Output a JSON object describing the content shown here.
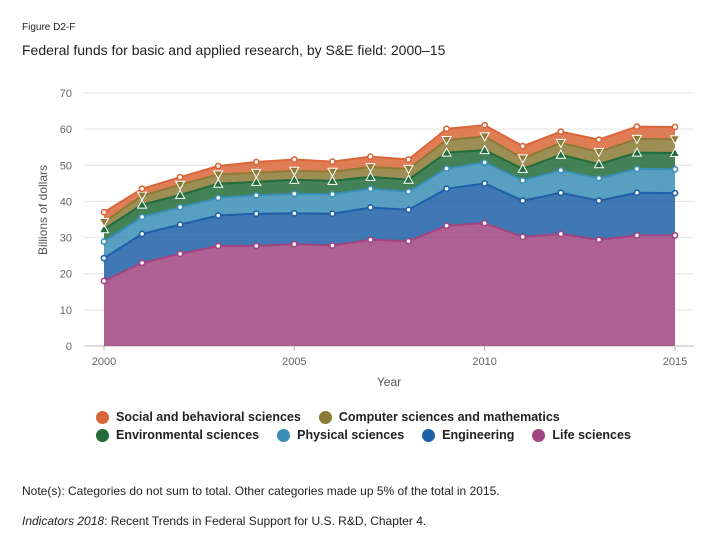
{
  "figure_label": "Figure D2-F",
  "title": "Federal funds for basic and applied research, by S&E field: 2000–15",
  "note": "Note(s): Categories do not sum to total. Other categories made up 5% of the total in 2015.",
  "source_italic": "Indicators 2018",
  "source_sep": ":",
  "source_rest": " Recent Trends in Federal Support for U.S. R&D, Chapter 4.",
  "chart_data": {
    "type": "area",
    "stacked": true,
    "title": "Federal funds for basic and applied research, by S&E field: 2000–15",
    "xlabel": "Year",
    "ylabel": "Billions of dollars",
    "ylim": [
      0,
      70
    ],
    "yticks": [
      "0",
      "10",
      "20",
      "30",
      "40",
      "50",
      "60",
      "70"
    ],
    "xtick_labels": [
      "2000",
      "2005",
      "2010",
      "2015"
    ],
    "xtick_values": [
      2000,
      2005,
      2010,
      2015
    ],
    "x": [
      2000,
      2001,
      2002,
      2003,
      2004,
      2005,
      2006,
      2007,
      2008,
      2009,
      2010,
      2011,
      2012,
      2013,
      2014,
      2015
    ],
    "series": [
      {
        "name": "Life sciences",
        "color": "#a0457f",
        "marker": "circle",
        "values": [
          18.0,
          23.0,
          25.5,
          27.7,
          27.7,
          28.2,
          27.8,
          29.4,
          29.0,
          33.3,
          34.0,
          30.2,
          31.0,
          29.4,
          30.6,
          30.6
        ]
      },
      {
        "name": "Engineering",
        "color": "#1f5fa8",
        "marker": "circle",
        "values": [
          6.3,
          8.0,
          8.1,
          8.4,
          8.9,
          8.5,
          8.8,
          8.9,
          8.7,
          10.2,
          11.0,
          10.0,
          11.4,
          10.8,
          11.8,
          11.7
        ]
      },
      {
        "name": "Physical sciences",
        "color": "#3a8fb7",
        "marker": "circle",
        "values": [
          4.6,
          4.7,
          4.8,
          4.9,
          5.1,
          5.4,
          5.4,
          5.2,
          5.0,
          5.6,
          5.8,
          5.6,
          6.2,
          6.2,
          6.6,
          6.6
        ]
      },
      {
        "name": "Environmental sciences",
        "color": "#226b3a",
        "marker": "triangle",
        "values": [
          3.4,
          3.4,
          3.4,
          3.9,
          3.7,
          3.9,
          3.7,
          3.3,
          3.3,
          4.4,
          3.4,
          3.2,
          4.3,
          3.9,
          4.5,
          4.5
        ]
      },
      {
        "name": "Computer sciences and mathematics",
        "color": "#8c7a35",
        "marker": "triangle-down",
        "values": [
          2.0,
          2.5,
          2.8,
          2.6,
          2.5,
          2.5,
          2.5,
          2.7,
          3.0,
          3.5,
          3.8,
          2.9,
          3.3,
          3.4,
          3.8,
          3.8
        ]
      },
      {
        "name": "Social and behavioral sciences",
        "color": "#d9663a",
        "marker": "circle",
        "values": [
          2.7,
          1.9,
          2.1,
          2.3,
          3.0,
          3.1,
          2.8,
          2.9,
          2.6,
          3.1,
          3.1,
          3.4,
          3.1,
          3.4,
          3.4,
          3.4
        ]
      }
    ],
    "legend": {
      "position": "bottom",
      "rows": [
        [
          "Social and behavioral sciences",
          "Computer sciences and mathematics"
        ],
        [
          "Environmental sciences",
          "Physical sciences",
          "Engineering",
          "Life sciences"
        ]
      ]
    },
    "grid": true
  }
}
